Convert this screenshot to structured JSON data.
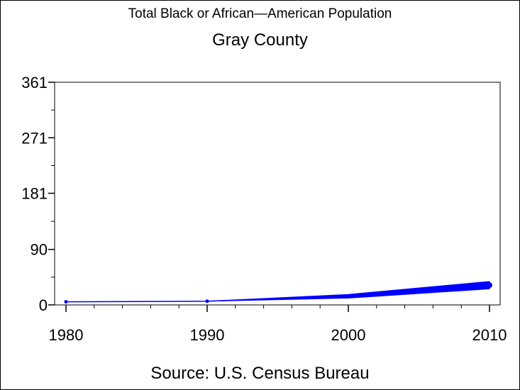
{
  "chart_data": {
    "type": "line",
    "title": "Total Black or African—American Population",
    "subtitle": "Gray County",
    "footnote": "Source: U.S. Census Bureau",
    "xlabel": "",
    "ylabel": "",
    "x": [
      1980,
      1990,
      2000,
      2010
    ],
    "series": [
      {
        "values": [
          5,
          6,
          14,
          32
        ]
      }
    ],
    "band": {
      "x": [
        1990,
        2000,
        2010
      ],
      "lower": [
        6,
        11,
        26
      ],
      "upper": [
        6,
        17,
        38
      ]
    },
    "xlim": [
      1980,
      2010
    ],
    "ylim": [
      0,
      361
    ],
    "xticks": [
      1980,
      1990,
      2000,
      2010
    ],
    "xtick_labels": [
      "1980",
      "1990",
      "2000",
      "2010"
    ],
    "yticks": [
      0,
      90,
      181,
      271,
      361
    ],
    "ytick_labels": [
      "0",
      "90",
      "181",
      "271",
      "361"
    ],
    "grid": false,
    "legend": "none",
    "colors": {
      "series": "#0000ff",
      "axis": "#000000"
    }
  }
}
